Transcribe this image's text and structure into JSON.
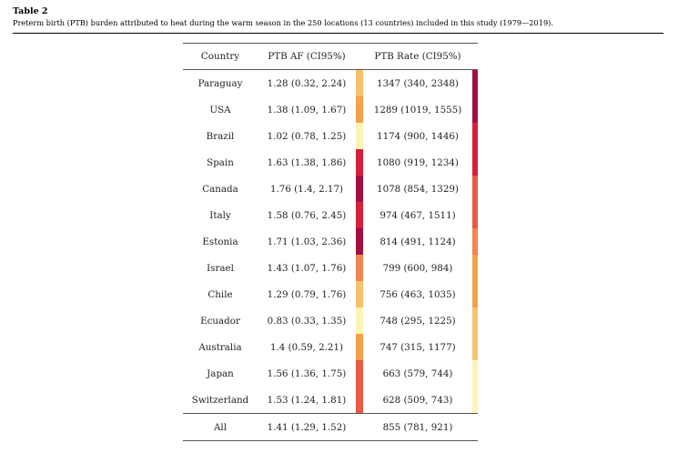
{
  "caption": {
    "label": "Table 2",
    "text": "Preterm birth (PTB) burden attributed to heat during the warm season in the 250 locations (13 countries) included in this study (1979—2019)."
  },
  "table": {
    "headers": {
      "country": "Country",
      "af": "PTB AF (CI95%)",
      "rate": "PTB Rate (CI95%)"
    },
    "rows": [
      {
        "country": "Paraguay",
        "af": "1.28 (0.32, 2.24)",
        "rate": "1347 (340, 2348)",
        "af_color": "#f7c26b",
        "rate_color": "#a31040"
      },
      {
        "country": "USA",
        "af": "1.38 (1.09, 1.67)",
        "rate": "1289 (1019, 1555)",
        "af_color": "#f2a14c",
        "rate_color": "#a31040"
      },
      {
        "country": "Brazil",
        "af": "1.02 (0.78, 1.25)",
        "rate": "1174 (900, 1446)",
        "af_color": "#fdf3b4",
        "rate_color": "#d81f3c"
      },
      {
        "country": "Spain",
        "af": "1.63 (1.38, 1.86)",
        "rate": "1080 (919, 1234)",
        "af_color": "#d81f3c",
        "rate_color": "#d81f3c"
      },
      {
        "country": "Canada",
        "af": "1.76 (1.4, 2.17)",
        "rate": "1078 (854, 1329)",
        "af_color": "#a31040",
        "rate_color": "#e95a44"
      },
      {
        "country": "Italy",
        "af": "1.58 (0.76, 2.45)",
        "rate": "974 (467, 1511)",
        "af_color": "#d81f3c",
        "rate_color": "#e95a44"
      },
      {
        "country": "Estonia",
        "af": "1.71 (1.03, 2.36)",
        "rate": "814 (491, 1124)",
        "af_color": "#a31040",
        "rate_color": "#f28552"
      },
      {
        "country": "Israel",
        "af": "1.43 (1.07, 1.76)",
        "rate": "799 (600, 984)",
        "af_color": "#f28552",
        "rate_color": "#f2a14c"
      },
      {
        "country": "Chile",
        "af": "1.29 (0.79, 1.76)",
        "rate": "756 (463, 1035)",
        "af_color": "#f7c26b",
        "rate_color": "#f2a14c"
      },
      {
        "country": "Ecuador",
        "af": "0.83 (0.33, 1.35)",
        "rate": "748 (295, 1225)",
        "af_color": "#fdf3b4",
        "rate_color": "#f7c26b"
      },
      {
        "country": "Australia",
        "af": "1.4 (0.59, 2.21)",
        "rate": "747 (315, 1177)",
        "af_color": "#f2a14c",
        "rate_color": "#f7c26b"
      },
      {
        "country": "Japan",
        "af": "1.56 (1.36, 1.75)",
        "rate": "663 (579, 744)",
        "af_color": "#e95a44",
        "rate_color": "#fdf3b4"
      },
      {
        "country": "Switzerland",
        "af": "1.53 (1.24, 1.81)",
        "rate": "628 (509, 743)",
        "af_color": "#e95a44",
        "rate_color": "#fdf3b4"
      }
    ],
    "total": {
      "country": "All",
      "af": "1.41 (1.29, 1.52)",
      "rate": "855 (781, 921)"
    }
  }
}
